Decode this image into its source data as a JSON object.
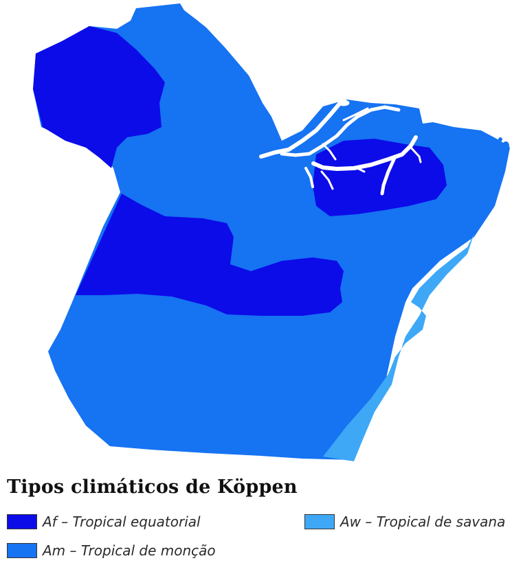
{
  "legend": {
    "title": "Tipos climáticos de Köppen",
    "items": [
      {
        "code": "Af",
        "label": "Af – Tropical equatorial",
        "color": "#0c0ce8"
      },
      {
        "code": "Am",
        "label": "Am – Tropical de monção",
        "color": "#1673f2"
      },
      {
        "code": "Aw",
        "label": "Aw – Tropical de savana",
        "color": "#3ea8f7"
      }
    ]
  },
  "map": {
    "water_color": "#ffffff"
  }
}
